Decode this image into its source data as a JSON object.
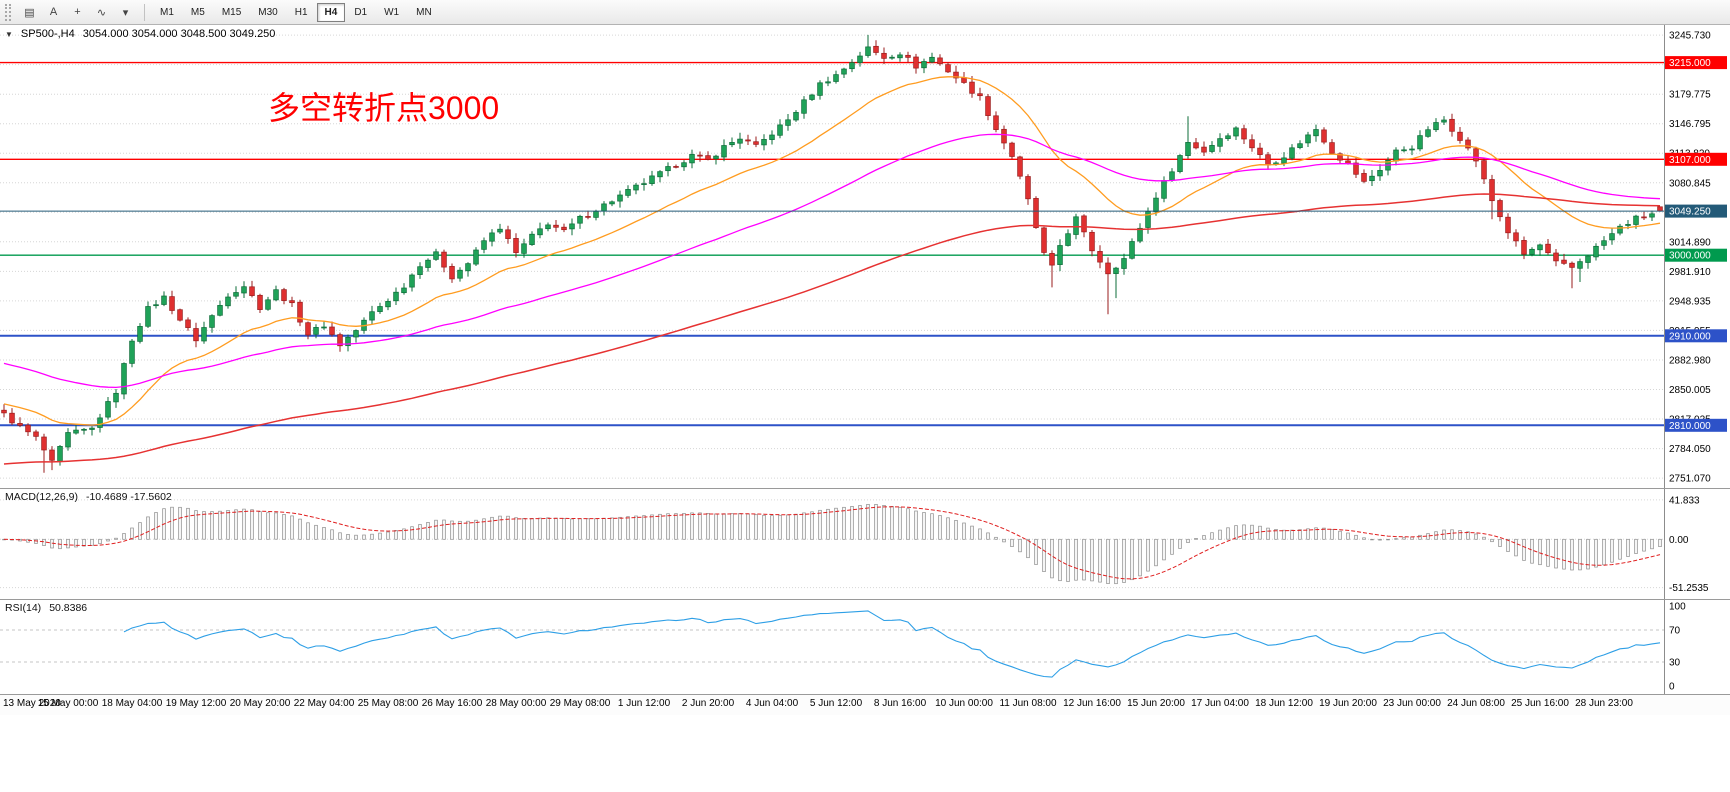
{
  "toolbar": {
    "tools": [
      {
        "name": "charts-grid",
        "glyph": "▤"
      },
      {
        "name": "text-annotation-tool",
        "glyph": "A"
      },
      {
        "name": "crosshair-tool",
        "glyph": "+"
      },
      {
        "name": "indicators-tool",
        "glyph": "∿"
      },
      {
        "name": "tools-dropdown",
        "glyph": "▾"
      }
    ],
    "timeframes": [
      {
        "label": "M1"
      },
      {
        "label": "M5"
      },
      {
        "label": "M15"
      },
      {
        "label": "M30"
      },
      {
        "label": "H1"
      },
      {
        "label": "H4",
        "active": true
      },
      {
        "label": "D1"
      },
      {
        "label": "W1"
      },
      {
        "label": "MN"
      }
    ]
  },
  "chart": {
    "collapse_glyph": "▼",
    "symbol_label": "SP500-,H4",
    "ohlc_label": "3054.000 3054.000 3048.500 3049.250",
    "annotation": {
      "text": "多空转折点3000",
      "color": "#ff0000"
    },
    "up_color": "#1fa258",
    "up_stroke": "#0c6c38",
    "down_color": "#df3030",
    "down_stroke": "#9a1d1d",
    "bid": {
      "price": 3049.25,
      "label": "3049.250",
      "color": "#235a78"
    },
    "levels": [
      {
        "price": 3215.0,
        "label": "3215.000",
        "color": "#ff0000",
        "width": 1.4
      },
      {
        "price": 3107.0,
        "label": "3107.000",
        "color": "#ff0000",
        "width": 1.4
      },
      {
        "price": 3000.0,
        "label": "3000.000",
        "color": "#009a4e",
        "width": 1.4
      },
      {
        "price": 2910.0,
        "label": "2910.000",
        "color": "#2d52c8",
        "width": 2
      },
      {
        "price": 2810.0,
        "label": "2810.000",
        "color": "#2d52c8",
        "width": 2
      }
    ],
    "moving_averages": [
      {
        "name": "fast-ma",
        "period": 20,
        "init": 2835,
        "color": "#ff9c20",
        "width": 1.3
      },
      {
        "name": "medium-ma",
        "period": 60,
        "init": 2881,
        "color": "#ff00ff",
        "width": 1.3
      },
      {
        "name": "slow-ma",
        "period": 140,
        "init": 2766,
        "color": "#e63232",
        "width": 1.5
      }
    ],
    "axis": {
      "ticks": [
        {
          "p": 3245.73,
          "t": "3245.730"
        },
        {
          "p": 3212.75,
          "t": "3212.750"
        },
        {
          "p": 3179.775,
          "t": "3179.775"
        },
        {
          "p": 3146.795,
          "t": "3146.795"
        },
        {
          "p": 3113.82,
          "t": "3113.820"
        },
        {
          "p": 3080.845,
          "t": "3080.845"
        },
        {
          "p": 3047.865,
          "t": "3047.865"
        },
        {
          "p": 3014.89,
          "t": "3014.890"
        },
        {
          "p": 2981.91,
          "t": "2981.910"
        },
        {
          "p": 2948.935,
          "t": "2948.935"
        },
        {
          "p": 2915.955,
          "t": "2915.955"
        },
        {
          "p": 2882.98,
          "t": "2882.980"
        },
        {
          "p": 2850.005,
          "t": "2850.005"
        },
        {
          "p": 2817.025,
          "t": "2817.025"
        },
        {
          "p": 2784.05,
          "t": "2784.050"
        },
        {
          "p": 2751.07,
          "t": "2751.070"
        }
      ]
    }
  },
  "chart_data": {
    "type": "candlestick-ohlc",
    "title": "SP500-,H4",
    "timeframe": "H4",
    "candle_count": 208,
    "ylim": [
      2740,
      3257
    ],
    "last_candle": {
      "open": 3054.0,
      "high": 3054.0,
      "low": 3048.5,
      "close": 3049.25
    },
    "close_waypoints": [
      [
        0,
        2822
      ],
      [
        2,
        2808
      ],
      [
        4,
        2796
      ],
      [
        6,
        2768
      ],
      [
        8,
        2800
      ],
      [
        11,
        2806
      ],
      [
        14,
        2848
      ],
      [
        16,
        2906
      ],
      [
        18,
        2940
      ],
      [
        20,
        2953
      ],
      [
        22,
        2928
      ],
      [
        24,
        2906
      ],
      [
        26,
        2932
      ],
      [
        28,
        2956
      ],
      [
        30,
        2966
      ],
      [
        32,
        2942
      ],
      [
        34,
        2960
      ],
      [
        36,
        2944
      ],
      [
        38,
        2912
      ],
      [
        40,
        2922
      ],
      [
        42,
        2900
      ],
      [
        44,
        2916
      ],
      [
        46,
        2936
      ],
      [
        48,
        2950
      ],
      [
        50,
        2966
      ],
      [
        52,
        2990
      ],
      [
        54,
        3001
      ],
      [
        56,
        2976
      ],
      [
        58,
        2991
      ],
      [
        60,
        3016
      ],
      [
        62,
        3031
      ],
      [
        64,
        3002
      ],
      [
        66,
        3021
      ],
      [
        68,
        3036
      ],
      [
        70,
        3026
      ],
      [
        72,
        3041
      ],
      [
        74,
        3051
      ],
      [
        76,
        3061
      ],
      [
        78,
        3071
      ],
      [
        80,
        3081
      ],
      [
        82,
        3091
      ],
      [
        84,
        3101
      ],
      [
        86,
        3111
      ],
      [
        88,
        3106
      ],
      [
        90,
        3121
      ],
      [
        92,
        3131
      ],
      [
        94,
        3121
      ],
      [
        96,
        3136
      ],
      [
        98,
        3151
      ],
      [
        100,
        3171
      ],
      [
        102,
        3191
      ],
      [
        104,
        3201
      ],
      [
        106,
        3216
      ],
      [
        108,
        3231
      ],
      [
        110,
        3221
      ],
      [
        112,
        3226
      ],
      [
        114,
        3211
      ],
      [
        116,
        3221
      ],
      [
        118,
        3206
      ],
      [
        120,
        3191
      ],
      [
        122,
        3176
      ],
      [
        124,
        3141
      ],
      [
        126,
        3111
      ],
      [
        128,
        3061
      ],
      [
        130,
        3001
      ],
      [
        131,
        2986
      ],
      [
        132,
        3011
      ],
      [
        134,
        3041
      ],
      [
        136,
        3006
      ],
      [
        138,
        2981
      ],
      [
        140,
        2996
      ],
      [
        142,
        3031
      ],
      [
        144,
        3066
      ],
      [
        146,
        3096
      ],
      [
        148,
        3126
      ],
      [
        150,
        3116
      ],
      [
        152,
        3131
      ],
      [
        154,
        3141
      ],
      [
        156,
        3121
      ],
      [
        158,
        3101
      ],
      [
        160,
        3111
      ],
      [
        162,
        3126
      ],
      [
        164,
        3141
      ],
      [
        166,
        3116
      ],
      [
        168,
        3101
      ],
      [
        170,
        3081
      ],
      [
        172,
        3096
      ],
      [
        174,
        3116
      ],
      [
        176,
        3121
      ],
      [
        178,
        3141
      ],
      [
        180,
        3151
      ],
      [
        182,
        3131
      ],
      [
        184,
        3106
      ],
      [
        186,
        3061
      ],
      [
        188,
        3026
      ],
      [
        190,
        3001
      ],
      [
        192,
        3011
      ],
      [
        194,
        2991
      ],
      [
        196,
        2986
      ],
      [
        198,
        3001
      ],
      [
        200,
        3016
      ],
      [
        202,
        3031
      ],
      [
        204,
        3041
      ],
      [
        206,
        3046
      ],
      [
        207,
        3049
      ]
    ],
    "wick_overrides": {
      "5": {
        "low": 2757
      },
      "6": {
        "low": 2760
      },
      "108": {
        "high": 3246
      },
      "109": {
        "high": 3240
      },
      "131": {
        "low": 2964
      },
      "138": {
        "low": 2934
      },
      "139": {
        "low": 2952
      },
      "148": {
        "high": 3155
      },
      "186": {
        "low": 3040
      },
      "196": {
        "low": 2963
      },
      "197": {
        "low": 2970
      }
    },
    "x_labels": [
      {
        "i": 1,
        "t": "13 May 2020"
      },
      {
        "i": 8,
        "t": "15 May 00:00"
      },
      {
        "i": 16,
        "t": "18 May 04:00"
      },
      {
        "i": 24,
        "t": "19 May 12:00"
      },
      {
        "i": 32,
        "t": "20 May 20:00"
      },
      {
        "i": 40,
        "t": "22 May 04:00"
      },
      {
        "i": 48,
        "t": "25 May 08:00"
      },
      {
        "i": 56,
        "t": "26 May 16:00"
      },
      {
        "i": 64,
        "t": "28 May 00:00"
      },
      {
        "i": 72,
        "t": "29 May 08:00"
      },
      {
        "i": 80,
        "t": "1 Jun 12:00"
      },
      {
        "i": 88,
        "t": "2 Jun 20:00"
      },
      {
        "i": 96,
        "t": "4 Jun 04:00"
      },
      {
        "i": 104,
        "t": "5 Jun 12:00"
      },
      {
        "i": 112,
        "t": "8 Jun 16:00"
      },
      {
        "i": 120,
        "t": "10 Jun 00:00"
      },
      {
        "i": 128,
        "t": "11 Jun 08:00"
      },
      {
        "i": 136,
        "t": "12 Jun 16:00"
      },
      {
        "i": 144,
        "t": "15 Jun 20:00"
      },
      {
        "i": 152,
        "t": "17 Jun 04:00"
      },
      {
        "i": 160,
        "t": "18 Jun 12:00"
      },
      {
        "i": 168,
        "t": "19 Jun 20:00"
      },
      {
        "i": 176,
        "t": "23 Jun 00:00"
      },
      {
        "i": 184,
        "t": "24 Jun 08:00"
      },
      {
        "i": 192,
        "t": "25 Jun 16:00"
      },
      {
        "i": 200,
        "t": "28 Jun 23:00"
      }
    ]
  },
  "macd": {
    "label": "MACD(12,26,9)",
    "values_label": "-10.4689 -17.5602",
    "params": {
      "fast": 12,
      "slow": 26,
      "signal": 9
    },
    "ylim": [
      -57,
      47
    ],
    "axis_labels": [
      {
        "v": 41.833,
        "t": "41.833"
      },
      {
        "v": 0,
        "t": "0.00"
      },
      {
        "v": -51.2535,
        "t": "-51.2535"
      }
    ],
    "histogram_fill": "#f5f5f5",
    "histogram_stroke": "#8e8e8e",
    "signal_color": "#e02020"
  },
  "rsi": {
    "label": "RSI(14)",
    "value_label": "50.8386",
    "period": 14,
    "levels": [
      70,
      30
    ],
    "axis_labels": [
      {
        "v": 100,
        "t": "100"
      },
      {
        "v": 70,
        "t": "70"
      },
      {
        "v": 30,
        "t": "30"
      },
      {
        "v": 0,
        "t": "0"
      }
    ],
    "line_color": "#2e9fe6"
  }
}
